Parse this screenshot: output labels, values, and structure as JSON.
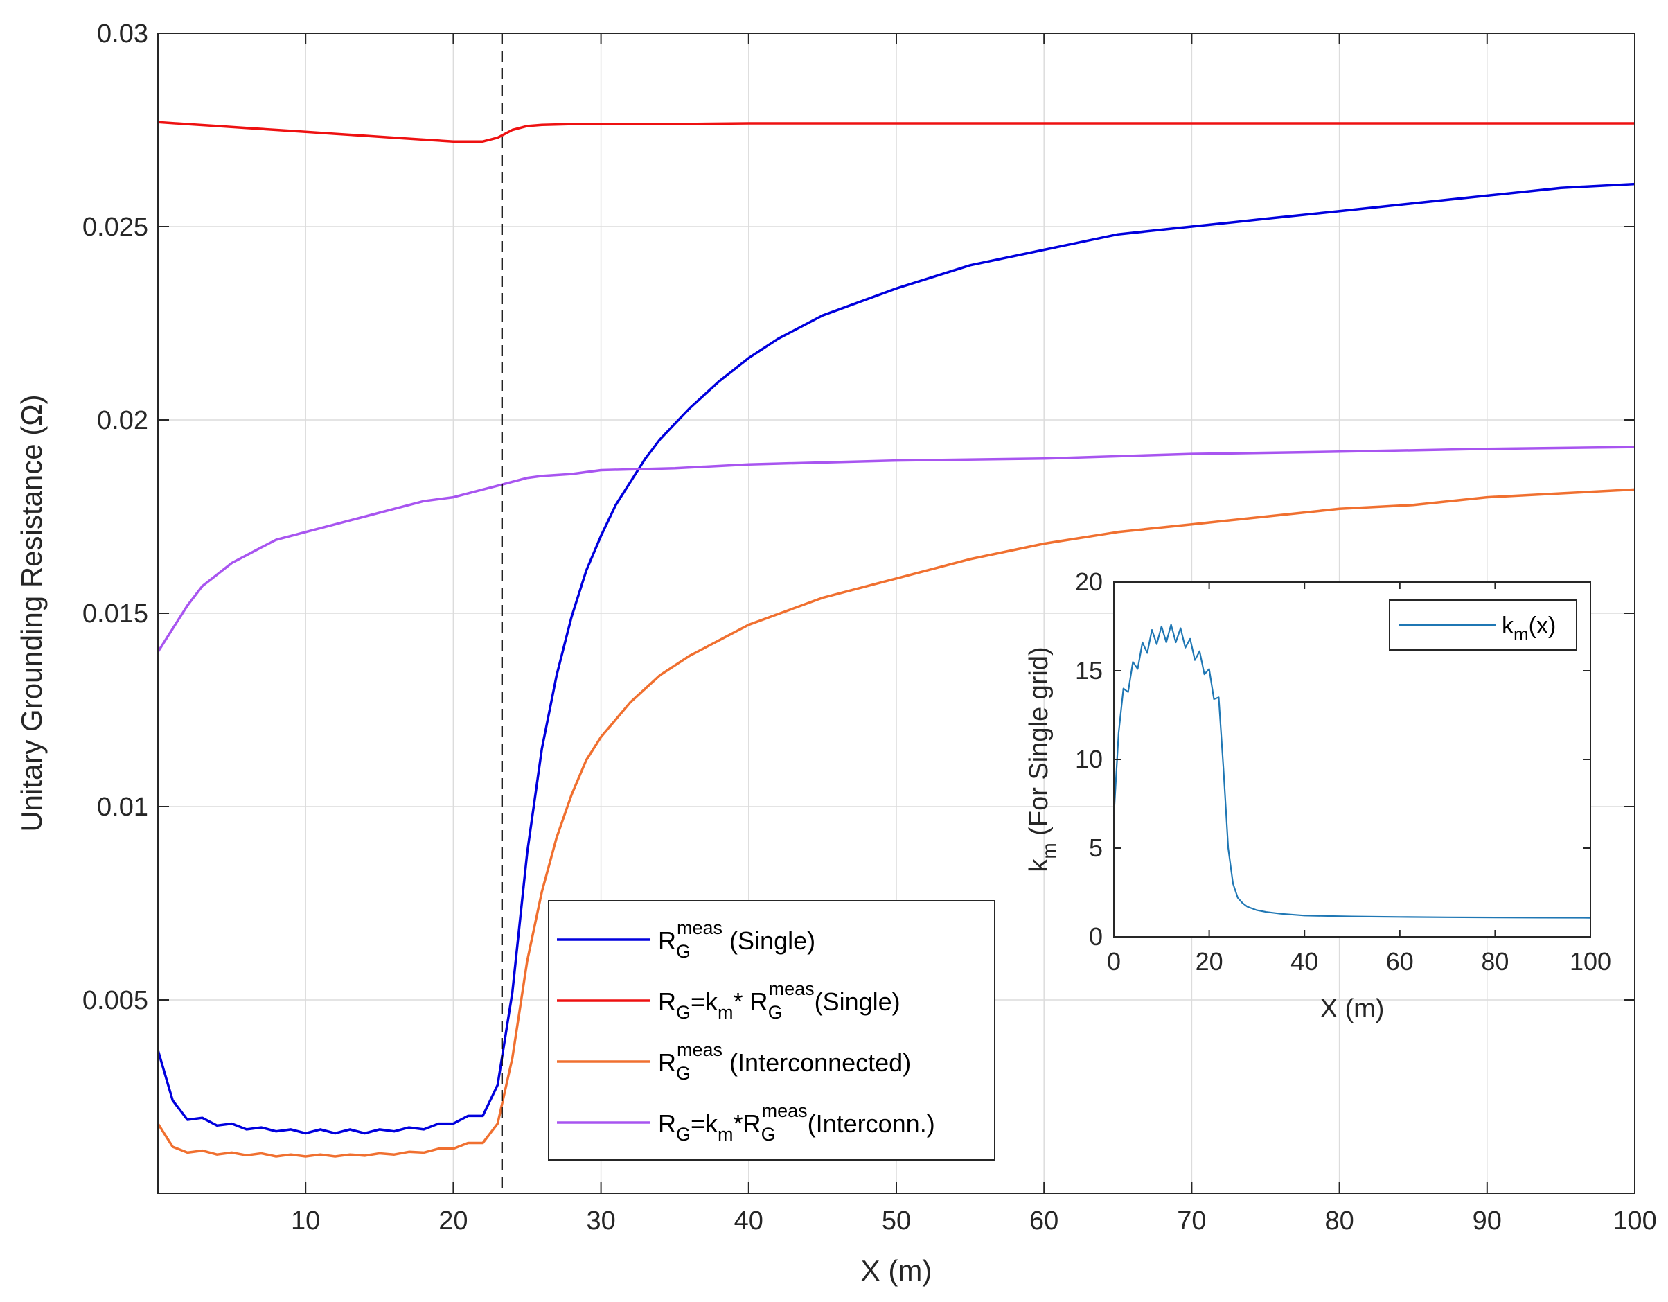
{
  "chart_data": [
    {
      "type": "line",
      "xlabel": "X (m)",
      "ylabel": "Unitary Grounding Resistance (Ω)",
      "xlim": [
        0,
        100
      ],
      "ylim": [
        0,
        0.03
      ],
      "x_ticks": [
        10,
        20,
        30,
        40,
        50,
        60,
        70,
        80,
        90,
        100
      ],
      "x_tick_labels": [
        "10",
        "20",
        "30",
        "40",
        "50",
        "60",
        "70",
        "80",
        "90",
        "100"
      ],
      "y_ticks": [
        0.005,
        0.01,
        0.015,
        0.02,
        0.025,
        0.03
      ],
      "y_tick_labels": [
        "0.005",
        "0.01",
        "0.015",
        "0.02",
        "0.025",
        "0.03"
      ],
      "grid": true,
      "vertical_marker": {
        "x": 23.3,
        "style": "dashed",
        "color": "#000000"
      },
      "legend": {
        "placement": "lower-center-right"
      },
      "series": [
        {
          "name": "R_G^meas (Single)",
          "legend_main": "R",
          "legend_sub": "G",
          "legend_sup": "meas",
          "legend_tail": " (Single)",
          "color": "#0000dd",
          "x": [
            0,
            1,
            2,
            3,
            4,
            5,
            6,
            7,
            8,
            9,
            10,
            11,
            12,
            13,
            14,
            15,
            16,
            17,
            18,
            19,
            20,
            21,
            22,
            23,
            24,
            25,
            26,
            27,
            28,
            29,
            30,
            31,
            32,
            33,
            34,
            35,
            36,
            38,
            40,
            42,
            45,
            50,
            55,
            60,
            65,
            70,
            75,
            80,
            85,
            90,
            95,
            100
          ],
          "y": [
            0.0037,
            0.0024,
            0.0019,
            0.00195,
            0.00175,
            0.0018,
            0.00165,
            0.0017,
            0.0016,
            0.00165,
            0.00155,
            0.00165,
            0.00155,
            0.00165,
            0.00155,
            0.00165,
            0.0016,
            0.0017,
            0.00165,
            0.0018,
            0.0018,
            0.002,
            0.002,
            0.0028,
            0.0052,
            0.0088,
            0.0115,
            0.0134,
            0.0149,
            0.0161,
            0.017,
            0.0178,
            0.0184,
            0.019,
            0.0195,
            0.0199,
            0.0203,
            0.021,
            0.0216,
            0.0221,
            0.0227,
            0.0234,
            0.024,
            0.0244,
            0.0248,
            0.025,
            0.0252,
            0.0254,
            0.0256,
            0.0258,
            0.026,
            0.0261
          ]
        },
        {
          "name": "R_G=k_m* R_G^meas(Single)",
          "legend_main": "R",
          "legend_sub": "G",
          "legend_mid": "=k",
          "legend_sub2": "m",
          "legend_mid2": "* R",
          "legend_sub3": "G",
          "legend_sup": "meas",
          "legend_tail": "(Single)",
          "color": "#ee1111",
          "x": [
            0,
            2,
            4,
            6,
            8,
            10,
            12,
            14,
            16,
            18,
            20,
            22,
            23,
            24,
            25,
            26,
            28,
            30,
            35,
            40,
            50,
            60,
            70,
            80,
            90,
            100
          ],
          "y": [
            0.0277,
            0.02765,
            0.0276,
            0.02755,
            0.0275,
            0.02745,
            0.0274,
            0.02735,
            0.0273,
            0.02725,
            0.0272,
            0.0272,
            0.0273,
            0.0275,
            0.0276,
            0.02763,
            0.02765,
            0.02765,
            0.02765,
            0.02767,
            0.02767,
            0.02767,
            0.02767,
            0.02767,
            0.02767,
            0.02767
          ]
        },
        {
          "name": "R_G^meas (Interconnected)",
          "legend_main": "R",
          "legend_sub": "G",
          "legend_sup": "meas",
          "legend_tail": " (Interconnected)",
          "color": "#f07030",
          "x": [
            0,
            1,
            2,
            3,
            4,
            5,
            6,
            7,
            8,
            9,
            10,
            11,
            12,
            13,
            14,
            15,
            16,
            17,
            18,
            19,
            20,
            21,
            22,
            23,
            24,
            25,
            26,
            27,
            28,
            29,
            30,
            32,
            34,
            36,
            38,
            40,
            45,
            50,
            55,
            60,
            65,
            70,
            75,
            80,
            85,
            90,
            95,
            100
          ],
          "y": [
            0.0018,
            0.0012,
            0.00105,
            0.0011,
            0.001,
            0.00105,
            0.00098,
            0.00103,
            0.00095,
            0.001,
            0.00095,
            0.001,
            0.00095,
            0.001,
            0.00097,
            0.00103,
            0.001,
            0.00107,
            0.00105,
            0.00115,
            0.00115,
            0.0013,
            0.0013,
            0.0018,
            0.0035,
            0.006,
            0.0078,
            0.0092,
            0.0103,
            0.0112,
            0.0118,
            0.0127,
            0.0134,
            0.0139,
            0.0143,
            0.0147,
            0.0154,
            0.0159,
            0.0164,
            0.0168,
            0.0171,
            0.0173,
            0.0175,
            0.0177,
            0.0178,
            0.018,
            0.0181,
            0.0182
          ]
        },
        {
          "name": "R_G=k_m*R_G^meas(Interconn.)",
          "legend_main": "R",
          "legend_sub": "G",
          "legend_mid": "=k",
          "legend_sub2": "m",
          "legend_mid2": "*R",
          "legend_sub3": "G",
          "legend_sup": "meas",
          "legend_tail": "(Interconn.)",
          "color": "#a855f0",
          "x": [
            0,
            1,
            2,
            3,
            4,
            5,
            6,
            7,
            8,
            9,
            10,
            12,
            14,
            16,
            18,
            20,
            22,
            23,
            24,
            25,
            26,
            28,
            30,
            35,
            40,
            50,
            60,
            70,
            80,
            90,
            100
          ],
          "y": [
            0.014,
            0.0146,
            0.0152,
            0.0157,
            0.016,
            0.0163,
            0.0165,
            0.0167,
            0.0169,
            0.017,
            0.0171,
            0.0173,
            0.0175,
            0.0177,
            0.0179,
            0.018,
            0.0182,
            0.0183,
            0.0184,
            0.0185,
            0.01855,
            0.0186,
            0.0187,
            0.01875,
            0.01885,
            0.01895,
            0.019,
            0.01912,
            0.01918,
            0.01925,
            0.0193
          ]
        }
      ]
    },
    {
      "type": "line",
      "xlabel": "X (m)",
      "ylabel_main": "k",
      "ylabel_sub": "m",
      "ylabel_tail": " (For Single grid)",
      "xlim": [
        0,
        100
      ],
      "ylim": [
        0,
        20
      ],
      "x_ticks": [
        0,
        20,
        40,
        60,
        80,
        100
      ],
      "x_tick_labels": [
        "0",
        "20",
        "40",
        "60",
        "80",
        "100"
      ],
      "y_ticks": [
        0,
        5,
        10,
        15,
        20
      ],
      "y_tick_labels": [
        "0",
        "5",
        "10",
        "15",
        "20"
      ],
      "grid": false,
      "legend": {
        "placement": "top-right"
      },
      "series": [
        {
          "legend_main": "k",
          "legend_sub": "m",
          "legend_tail": "(x)",
          "color": "#1f77b4",
          "x": [
            0,
            1,
            2,
            3,
            4,
            5,
            6,
            7,
            8,
            9,
            10,
            11,
            12,
            13,
            14,
            15,
            16,
            17,
            18,
            19,
            20,
            21,
            22,
            23,
            24,
            25,
            26,
            27,
            28,
            30,
            32,
            35,
            40,
            50,
            60,
            70,
            80,
            90,
            100
          ],
          "y": [
            6.8,
            11.5,
            14,
            13.8,
            15.5,
            15.1,
            16.6,
            16,
            17.3,
            16.5,
            17.5,
            16.6,
            17.6,
            16.6,
            17.4,
            16.3,
            16.8,
            15.6,
            16.1,
            14.8,
            15.1,
            13.4,
            13.5,
            9.5,
            5,
            3,
            2.2,
            1.9,
            1.7,
            1.5,
            1.4,
            1.3,
            1.2,
            1.15,
            1.12,
            1.1,
            1.09,
            1.08,
            1.07
          ]
        }
      ]
    }
  ]
}
